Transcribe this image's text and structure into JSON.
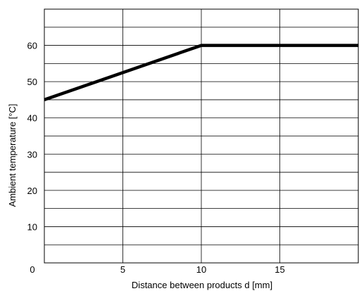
{
  "chart_data": {
    "type": "line",
    "title": "",
    "xlabel": "Distance between products d [mm]",
    "ylabel": "Ambient temperature [°C]",
    "xlim": [
      0,
      20
    ],
    "ylim": [
      0,
      70
    ],
    "xticks": [
      5,
      10,
      15
    ],
    "yticks": [
      10,
      20,
      30,
      40,
      50,
      60
    ],
    "origin_label": "0",
    "grid": true,
    "grid_minor_y": 5,
    "series": [
      {
        "x": [
          0,
          10,
          20
        ],
        "y": [
          45,
          60,
          60
        ]
      }
    ]
  }
}
